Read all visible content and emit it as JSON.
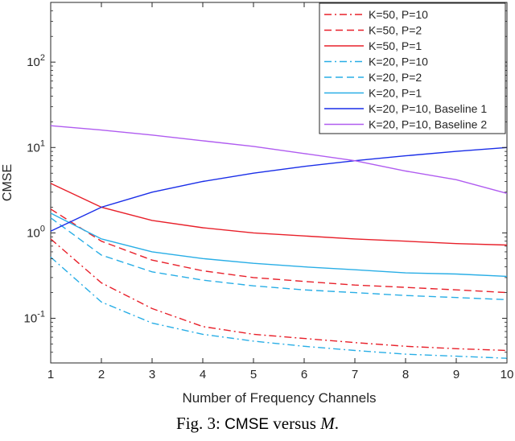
{
  "chart_data": {
    "type": "line",
    "xlabel": "Number of Frequency Channels",
    "ylabel": "CMSE",
    "xlim": [
      1,
      10
    ],
    "ylim": [
      0.03,
      500
    ],
    "yscale": "log",
    "x_ticks": [
      "1",
      "2",
      "3",
      "4",
      "5",
      "6",
      "7",
      "8",
      "9",
      "10"
    ],
    "y_ticks": [
      {
        "value": 0.1,
        "base": "10",
        "exp": "-1"
      },
      {
        "value": 1,
        "base": "10",
        "exp": "0"
      },
      {
        "value": 10,
        "base": "10",
        "exp": "1"
      },
      {
        "value": 100,
        "base": "10",
        "exp": "2"
      }
    ],
    "grid": false,
    "legend_position": "top-right",
    "x": [
      1,
      2,
      3,
      4,
      5,
      6,
      7,
      8,
      9,
      10
    ],
    "series": [
      {
        "name": "K=50, P=10",
        "color": "#e8202a",
        "dash": "dashdot",
        "values": [
          0.85,
          0.26,
          0.13,
          0.08,
          0.065,
          0.058,
          0.052,
          0.047,
          0.044,
          0.042
        ]
      },
      {
        "name": "K=50, P=2",
        "color": "#e8202a",
        "dash": "dashed",
        "values": [
          1.9,
          0.8,
          0.48,
          0.36,
          0.3,
          0.27,
          0.245,
          0.23,
          0.215,
          0.2
        ]
      },
      {
        "name": "K=50, P=1",
        "color": "#e8202a",
        "dash": "solid",
        "values": [
          3.8,
          2.0,
          1.4,
          1.15,
          1.0,
          0.92,
          0.85,
          0.8,
          0.75,
          0.72
        ]
      },
      {
        "name": "K=20, P=10",
        "color": "#29aee6",
        "dash": "dashdot",
        "values": [
          0.52,
          0.155,
          0.088,
          0.065,
          0.054,
          0.047,
          0.042,
          0.038,
          0.036,
          0.034
        ]
      },
      {
        "name": "K=20, P=2",
        "color": "#29aee6",
        "dash": "dashed",
        "values": [
          1.5,
          0.55,
          0.35,
          0.28,
          0.24,
          0.215,
          0.2,
          0.185,
          0.175,
          0.165
        ]
      },
      {
        "name": "K=20, P=1",
        "color": "#29aee6",
        "dash": "solid",
        "values": [
          1.7,
          0.85,
          0.6,
          0.5,
          0.44,
          0.4,
          0.37,
          0.34,
          0.33,
          0.31
        ]
      },
      {
        "name": "K=20, P=10, Baseline 1",
        "color": "#1a2ee8",
        "dash": "solid",
        "values": [
          1.05,
          2.0,
          3.0,
          4.0,
          5.0,
          6.0,
          7.0,
          8.0,
          9.0,
          10.0
        ]
      },
      {
        "name": "K=20, P=10, Baseline 2",
        "color": "#b05cf0",
        "dash": "solid",
        "values": [
          18,
          16,
          14,
          12,
          10.3,
          8.5,
          7.0,
          5.3,
          4.2,
          2.9
        ]
      }
    ]
  },
  "caption": {
    "prefix": "Fig. 3:",
    "metric": "CMSE",
    "word": "versus",
    "var": "M",
    "suffix": "."
  }
}
